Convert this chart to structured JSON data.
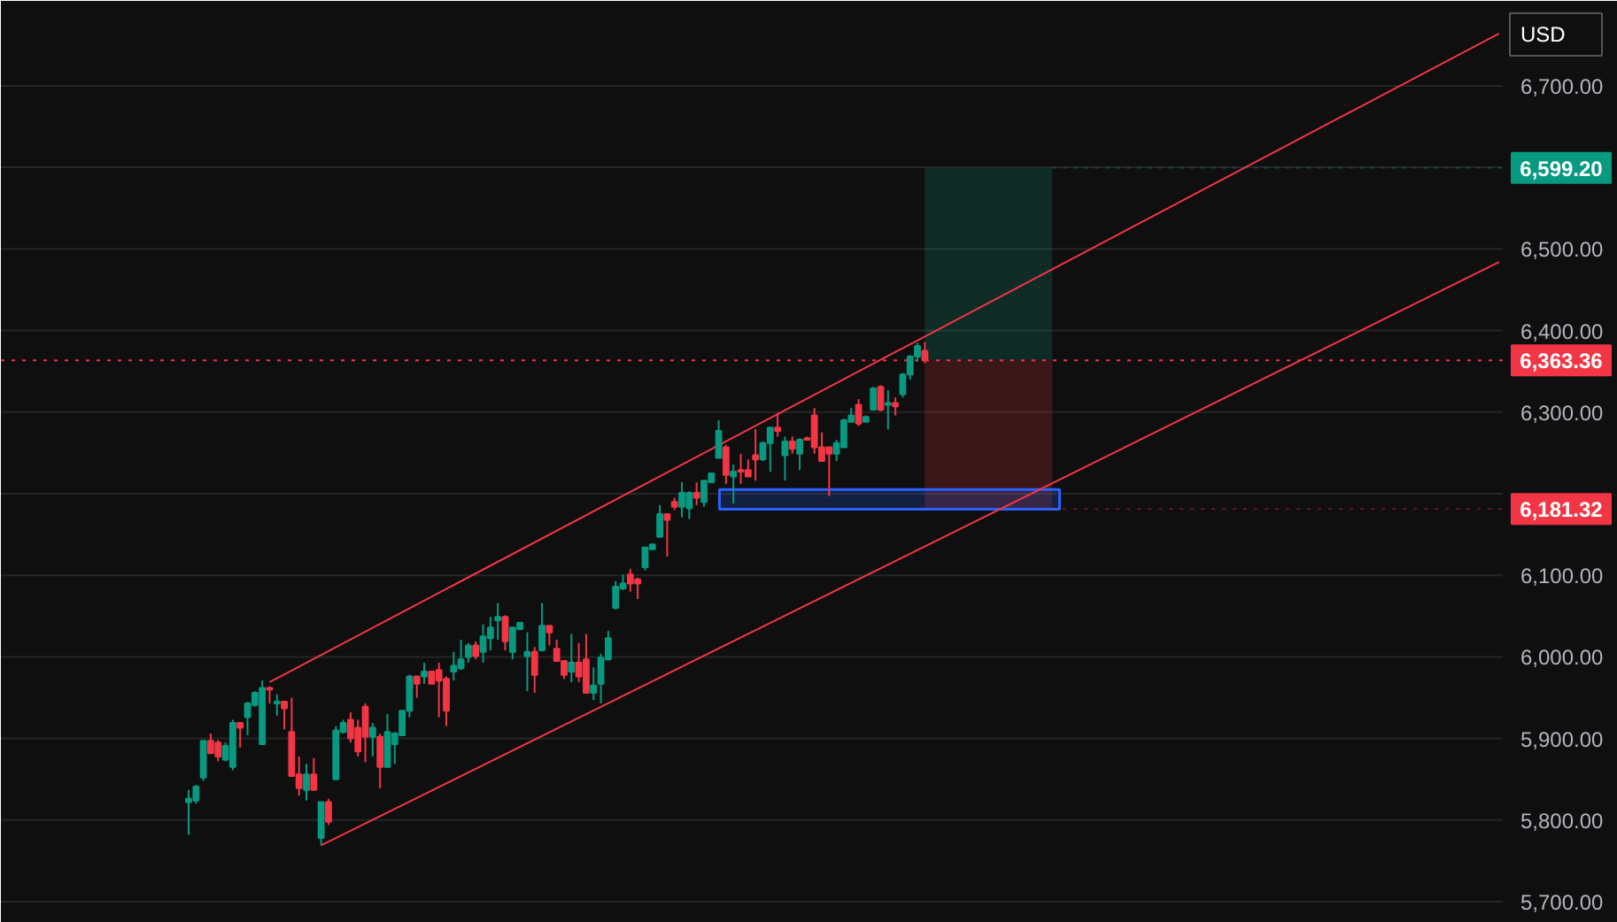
{
  "chart_data": {
    "type": "candlestick",
    "categories": [
      null,
      null,
      null,
      null,
      null,
      null,
      null,
      null,
      null,
      null,
      null,
      null,
      null,
      null,
      null,
      null,
      null,
      null,
      null,
      null,
      null,
      null,
      null,
      null,
      null,
      null,
      null,
      null,
      null,
      null,
      null,
      null,
      null,
      null,
      null,
      null,
      null,
      null,
      null,
      null,
      null,
      null,
      null,
      null,
      null,
      null,
      null,
      null,
      null,
      null,
      null,
      null,
      null,
      null,
      null,
      null,
      null,
      null,
      null,
      null,
      null,
      null,
      null,
      null,
      null,
      null,
      null,
      null,
      null,
      null,
      null,
      null,
      null,
      null,
      null,
      null,
      null,
      null,
      null,
      null,
      null,
      null,
      null,
      null,
      null,
      null,
      null,
      null,
      null,
      null,
      null,
      null,
      null,
      null,
      null,
      null,
      null,
      null,
      null,
      null,
      null,
      null,
      null,
      null,
      null,
      null,
      null,
      null,
      null,
      null,
      null,
      null,
      null,
      null,
      null,
      null,
      null,
      null,
      null,
      null,
      null,
      null,
      null,
      null,
      null,
      null,
      null,
      null,
      null,
      null,
      null,
      null,
      null,
      null,
      null,
      null,
      null,
      null,
      null,
      null,
      null,
      null,
      null,
      null,
      null,
      null,
      null,
      null,
      null,
      null,
      null,
      null,
      null,
      null,
      null,
      null,
      null,
      null,
      null,
      null,
      null,
      null,
      null,
      null,
      null,
      null,
      null,
      null,
      null,
      null,
      null,
      null,
      null,
      null,
      null,
      null,
      null,
      null,
      null,
      null,
      null,
      null,
      null,
      null,
      null,
      null,
      null,
      null,
      null,
      null,
      null,
      null,
      null,
      null,
      null,
      null,
      null,
      null,
      null,
      null,
      null,
      null,
      null,
      null
    ],
    "ohlc": [
      null,
      null,
      null,
      null,
      null,
      null,
      null,
      null,
      null,
      null,
      null,
      null,
      null,
      null,
      null,
      null,
      null,
      null,
      null,
      null,
      null,
      null,
      null,
      null,
      null,
      [
        5822,
        5837,
        5782,
        5826
      ],
      [
        5824,
        5843,
        5820,
        5841
      ],
      [
        5852,
        5897,
        5848,
        5897
      ],
      [
        5897,
        5906,
        5882,
        5882
      ],
      [
        5895,
        5898,
        5872,
        5878
      ],
      [
        5874,
        5895,
        5872,
        5891
      ],
      [
        5865,
        5923,
        5861,
        5919
      ],
      [
        5919,
        5919,
        5889,
        5913
      ],
      [
        5926,
        5945,
        5904,
        5943
      ],
      [
        5941,
        5958,
        5939,
        5956
      ],
      [
        5893,
        5971,
        5893,
        5962
      ],
      [
        5962,
        5964,
        5943,
        5960
      ],
      [
        5943,
        5954,
        5928,
        5945
      ],
      [
        5945,
        5945,
        5911,
        5937
      ],
      [
        5908,
        5950,
        5854,
        5854
      ],
      [
        5856,
        5878,
        5830,
        5839
      ],
      [
        5837,
        5869,
        5824,
        5856
      ],
      [
        5856,
        5876,
        5837,
        5837
      ],
      [
        5778,
        5822,
        5769,
        5822
      ],
      [
        5822,
        5826,
        5794,
        5798
      ],
      [
        5850,
        5915,
        5850,
        5910
      ],
      [
        5908,
        5923,
        5906,
        5919
      ],
      [
        5923,
        5932,
        5895,
        5900
      ],
      [
        5913,
        5923,
        5878,
        5884
      ],
      [
        5939,
        5943,
        5871,
        5902
      ],
      [
        5902,
        5919,
        5878,
        5913
      ],
      [
        5902,
        5906,
        5839,
        5865
      ],
      [
        5865,
        5930,
        5865,
        5908
      ],
      [
        5893,
        5908,
        5869,
        5906
      ],
      [
        5904,
        5934,
        5904,
        5934
      ],
      [
        5934,
        5978,
        5926,
        5976
      ],
      [
        5976,
        5976,
        5950,
        5967
      ],
      [
        5976,
        5993,
        5967,
        5982
      ],
      [
        5982,
        5982,
        5967,
        5967
      ],
      [
        5984,
        5993,
        5926,
        5971
      ],
      [
        5973,
        5976,
        5915,
        5934
      ],
      [
        5982,
        6006,
        5971,
        5989
      ],
      [
        5986,
        6021,
        5984,
        5997
      ],
      [
        6000,
        6017,
        5993,
        6014
      ],
      [
        6014,
        6019,
        5997,
        6001
      ],
      [
        6006,
        6040,
        5993,
        6025
      ],
      [
        6023,
        6049,
        6008,
        6036
      ],
      [
        6045,
        6066,
        6021,
        6049
      ],
      [
        6049,
        6051,
        6008,
        6019
      ],
      [
        6006,
        6036,
        5997,
        6036
      ],
      [
        6034,
        6042,
        6034,
        6042
      ],
      [
        6001,
        6030,
        5958,
        6006
      ],
      [
        6006,
        6012,
        5956,
        5978
      ],
      [
        6008,
        6066,
        6008,
        6038
      ],
      [
        6038,
        6038,
        6014,
        6030
      ],
      [
        6010,
        6021,
        5995,
        5995
      ],
      [
        5995,
        5995,
        5973,
        5978
      ],
      [
        5982,
        6028,
        5969,
        5993
      ],
      [
        5993,
        6017,
        5969,
        5976
      ],
      [
        5997,
        6028,
        5956,
        5956
      ],
      [
        5956,
        5987,
        5947,
        5965
      ],
      [
        5967,
        6004,
        5943,
        5999
      ],
      [
        5997,
        6032,
        5997,
        6023
      ],
      [
        6060,
        6093,
        6058,
        6086
      ],
      [
        6084,
        6101,
        6082,
        6090
      ],
      [
        6101,
        6108,
        6080,
        6090
      ],
      [
        6095,
        6097,
        6071,
        6090
      ],
      [
        6110,
        6134,
        6106,
        6134
      ],
      [
        6132,
        6138,
        6132,
        6138
      ],
      [
        6147,
        6186,
        6147,
        6175
      ],
      [
        6175,
        6175,
        6123,
        6168
      ],
      [
        6190,
        6195,
        6180,
        6184
      ],
      [
        6184,
        6214,
        6171,
        6201
      ],
      [
        6182,
        6203,
        6169,
        6201
      ],
      [
        6201,
        6214,
        6186,
        6195
      ],
      [
        6190,
        6216,
        6184,
        6216
      ],
      [
        6214,
        6225,
        6214,
        6225
      ],
      [
        6244,
        6290,
        6244,
        6277
      ],
      [
        6257,
        6260,
        6212,
        6223
      ],
      [
        6221,
        6236,
        6188,
        6227
      ],
      [
        6229,
        6249,
        6212,
        6227
      ],
      [
        6229,
        6242,
        6221,
        6221
      ],
      [
        6247,
        6279,
        6216,
        6242
      ],
      [
        6242,
        6264,
        6240,
        6262
      ],
      [
        6262,
        6281,
        6227,
        6281
      ],
      [
        6281,
        6299,
        6270,
        6277
      ],
      [
        6247,
        6270,
        6216,
        6264
      ],
      [
        6264,
        6270,
        6249,
        6255
      ],
      [
        6249,
        6268,
        6229,
        6266
      ],
      [
        6268,
        6270,
        6266,
        6266
      ],
      [
        6296,
        6305,
        6249,
        6257
      ],
      [
        6257,
        6275,
        6240,
        6240
      ],
      [
        6257,
        6257,
        6197,
        6249
      ],
      [
        6249,
        6266,
        6240,
        6262
      ],
      [
        6257,
        6292,
        6257,
        6290
      ],
      [
        6288,
        6305,
        6288,
        6296
      ],
      [
        6309,
        6316,
        6283,
        6286
      ],
      [
        6288,
        6296,
        6288,
        6294
      ],
      [
        6303,
        6331,
        6303,
        6329
      ],
      [
        6331,
        6333,
        6301,
        6303
      ],
      [
        6309,
        6327,
        6279,
        6311
      ],
      [
        6311,
        6318,
        6296,
        6307
      ],
      [
        6322,
        6348,
        6318,
        6346
      ],
      [
        6346,
        6370,
        6340,
        6368
      ],
      [
        6368,
        6385,
        6362,
        6381
      ],
      [
        6375,
        6386,
        6360,
        6363.36
      ],
      null,
      null,
      null,
      null,
      null,
      null,
      null,
      null,
      null,
      null,
      null,
      null,
      null,
      null,
      null,
      null,
      null,
      null,
      null,
      null,
      null,
      null,
      null,
      null,
      null,
      null,
      null,
      null,
      null,
      null,
      null,
      null,
      null,
      null,
      null,
      null,
      null,
      null,
      null,
      null,
      null,
      null,
      null,
      null,
      null,
      null,
      null,
      null,
      null,
      null,
      null,
      null,
      null,
      null,
      null,
      null,
      null,
      null,
      null,
      null,
      null,
      null,
      null,
      null,
      null,
      null,
      null,
      null,
      null,
      null,
      null,
      null,
      null,
      null,
      null,
      null,
      null,
      null
    ],
    "colors": [
      null,
      null,
      null,
      null,
      null,
      null,
      null,
      null,
      null,
      null,
      null,
      null,
      null,
      "#089981",
      "#f23645",
      null,
      "#f23645",
      null,
      null,
      null,
      null,
      "#089981",
      "#f23645",
      "#f23645",
      null,
      "#089981",
      "#089981",
      "#089981",
      "#f23645",
      "#f23645",
      "#089981",
      "#089981",
      "#f23645",
      "#089981",
      "#089981",
      "#089981",
      "#f23645",
      "#089981",
      "#f23645",
      "#f23645",
      "#f23645",
      "#089981",
      "#f23645",
      "#089981",
      "#f23645",
      "#089981",
      "#089981",
      "#f23645",
      "#f23645",
      "#f23645",
      "#089981",
      "#f23645",
      "#089981",
      "#089981",
      "#089981",
      "#089981",
      "#f23645",
      "#089981",
      "#f23645",
      "#f23645",
      "#f23645",
      "#089981",
      "#089981",
      "#089981",
      "#f23645",
      "#089981",
      "#089981",
      "#089981",
      "#f23645",
      "#089981",
      "#089981",
      "#089981",
      "#f23645",
      "#089981",
      "#f23645",
      "#f23645",
      "#f23645",
      "#089981",
      "#f23645",
      "#f23645",
      "#089981",
      "#089981",
      "#089981",
      "#089981",
      "#089981",
      "#f23645",
      "#f23645",
      "#089981",
      "#089981",
      "#089981",
      "#f23645",
      "#f23645",
      "#089981",
      "#089981",
      "#f23645",
      "#089981",
      "#089981",
      "#089981",
      "#f23645",
      "#089981",
      "#f23645",
      "#f23645",
      "#f23645",
      "#089981",
      "#089981",
      "#f23645",
      "#089981",
      "#f23645",
      "#089981",
      "#f23645",
      "#f23645",
      "#f23645",
      "#f23645",
      "#089981",
      "#089981",
      "#089981",
      "#f23645",
      "#089981",
      "#089981",
      "#f23645",
      "#089981",
      "#f23645",
      "#089981",
      "#089981",
      "#089981",
      "#f23645",
      null,
      null,
      null,
      null,
      null,
      null,
      null,
      null,
      null,
      null,
      null,
      null,
      null,
      null,
      null,
      null,
      null,
      null,
      null,
      null,
      null,
      null,
      null,
      null,
      null,
      null,
      null,
      null,
      null,
      null,
      null,
      null,
      null,
      null,
      null,
      null,
      null,
      null,
      null,
      null,
      null,
      null,
      null,
      null,
      null,
      null,
      null,
      null,
      null,
      null,
      null,
      null,
      null,
      null,
      null,
      null,
      null,
      null,
      null,
      null,
      null,
      null,
      null,
      null,
      null,
      null,
      null,
      null,
      null,
      null,
      null,
      null,
      null,
      null,
      null,
      null,
      null,
      null
    ],
    "series": [
      {
        "type": "line",
        "color": "#f23645",
        "values": [
          null,
          null,
          null,
          null,
          null,
          null,
          null,
          null,
          null,
          null,
          null,
          null,
          null,
          null,
          null,
          null,
          null,
          null,
          null,
          null,
          null,
          null,
          null,
          null,
          null,
          null,
          null,
          null,
          null,
          null,
          null,
          null,
          null,
          null,
          null,
          null,
          5969,
          null,
          null,
          null,
          null,
          null,
          null,
          null,
          null,
          null,
          null,
          null,
          null,
          null,
          null,
          null,
          null,
          null,
          null,
          null,
          null,
          null,
          null,
          null,
          null,
          null,
          null,
          null,
          null,
          null,
          null,
          null,
          null,
          null,
          null,
          null,
          null,
          null,
          null,
          null,
          null,
          null,
          null,
          null,
          null,
          null,
          null,
          null,
          null,
          null,
          null,
          null,
          null,
          null,
          null,
          null,
          null,
          null,
          null,
          null,
          null,
          null,
          null,
          null,
          null,
          null,
          null,
          null,
          null,
          null,
          null,
          null,
          null,
          null,
          null,
          null,
          null,
          null,
          null,
          null,
          null,
          null,
          null,
          null,
          null,
          null,
          null,
          null,
          null,
          null,
          null,
          null,
          null,
          null,
          null,
          null,
          null,
          null,
          null,
          null,
          null,
          null,
          null,
          null,
          null,
          null,
          null,
          null,
          null,
          null,
          null,
          null,
          null,
          null,
          null,
          null,
          null,
          null,
          null,
          null,
          null,
          null,
          null,
          null,
          null,
          null,
          null,
          null,
          null,
          null,
          null,
          null,
          null,
          null,
          null,
          null,
          null,
          null,
          null,
          null,
          null,
          null,
          null,
          null,
          null,
          null,
          null,
          null,
          null,
          null,
          null,
          null,
          null,
          null,
          null,
          null,
          null,
          null,
          null,
          null,
          null,
          null,
          null,
          null,
          null,
          null,
          null,
          6764
        ]
      },
      {
        "type": "line",
        "color": "#f23645",
        "values": [
          null,
          null,
          null,
          null,
          null,
          null,
          null,
          null,
          null,
          null,
          null,
          null,
          null,
          null,
          null,
          null,
          null,
          null,
          null,
          null,
          null,
          null,
          null,
          null,
          null,
          null,
          null,
          null,
          null,
          null,
          null,
          null,
          null,
          null,
          null,
          null,
          null,
          null,
          null,
          null,
          null,
          null,
          null,
          5769,
          null,
          null,
          null,
          null,
          null,
          null,
          null,
          null,
          null,
          null,
          null,
          null,
          null,
          null,
          null,
          null,
          null,
          null,
          null,
          null,
          null,
          null,
          null,
          null,
          null,
          null,
          null,
          null,
          null,
          null,
          null,
          null,
          null,
          null,
          null,
          null,
          null,
          null,
          null,
          null,
          null,
          null,
          null,
          null,
          null,
          null,
          null,
          null,
          null,
          null,
          null,
          null,
          null,
          null,
          null,
          null,
          null,
          null,
          null,
          null,
          null,
          null,
          null,
          null,
          null,
          null,
          null,
          null,
          null,
          null,
          null,
          null,
          null,
          null,
          null,
          null,
          null,
          null,
          null,
          null,
          null,
          null,
          null,
          null,
          null,
          null,
          null,
          null,
          null,
          null,
          null,
          null,
          null,
          null,
          null,
          null,
          null,
          null,
          null,
          null,
          null,
          null,
          null,
          null,
          null,
          null,
          null,
          null,
          null,
          null,
          null,
          null,
          null,
          null,
          null,
          null,
          null,
          null,
          null,
          null,
          null,
          null,
          null,
          null,
          null,
          null,
          null,
          null,
          null,
          null,
          null,
          null,
          null,
          null,
          null,
          null,
          null,
          null,
          null,
          null,
          null,
          null,
          null,
          null,
          null,
          null,
          null,
          null,
          null,
          null,
          null,
          null,
          null,
          null,
          null,
          null,
          null,
          null,
          null,
          6484
        ]
      }
    ],
    "ylim": [
      5674,
      6804
    ],
    "yticks": [
      {
        "value": 5700,
        "label": "5,700.00"
      },
      {
        "value": 5800,
        "label": "5,800.00"
      },
      {
        "value": 5900,
        "label": "5,900.00"
      },
      {
        "value": 6000,
        "label": "6,000.00"
      },
      {
        "value": 6100,
        "label": "6,100.00"
      },
      {
        "value": 6200,
        "label": null
      },
      {
        "value": 6300,
        "label": "6,300.00"
      },
      {
        "value": 6400,
        "label": "6,400.00"
      },
      {
        "value": 6500,
        "label": "6,500.00"
      },
      {
        "value": 6600,
        "label": null
      },
      {
        "value": 6700,
        "label": "6,700.00"
      }
    ],
    "ref_lines": [
      {
        "axis": "y",
        "value": 6363.36,
        "label": "6,363.36",
        "color": "#f23645",
        "line_style": "dotted"
      }
    ],
    "bands": [
      {
        "axis": "y",
        "from": 6363.36,
        "to": 6599.2,
        "label": "6,599.20",
        "color": "#089981"
      },
      {
        "axis": "y",
        "from": 6363.36,
        "to": 6181.32,
        "label": "6,181.32",
        "color": "#f23645"
      },
      {
        "axis": "y",
        "from": 6181,
        "to": 6205,
        "color": "#2962ff"
      }
    ],
    "annotations": [
      "USD"
    ],
    "grid": "y",
    "tick_labels": "y"
  }
}
